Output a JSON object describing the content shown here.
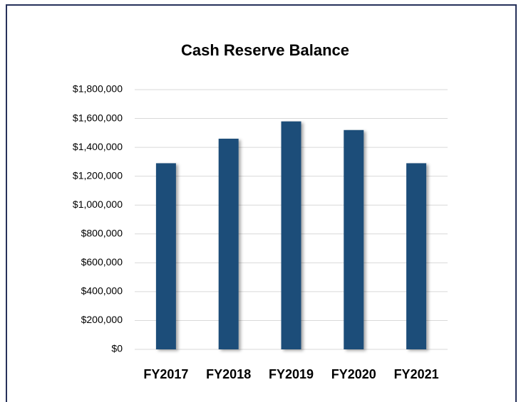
{
  "chart_data": {
    "type": "bar",
    "title": "Cash Reserve Balance",
    "categories": [
      "FY2017",
      "FY2018",
      "FY2019",
      "FY2020",
      "FY2021"
    ],
    "values": [
      1290000,
      1460000,
      1580000,
      1520000,
      1290000
    ],
    "color": "#1f4e79",
    "ylim": [
      0,
      1800000
    ],
    "yticks": [
      {
        "value": 0,
        "label": "$0"
      },
      {
        "value": 200000,
        "label": "$200,000"
      },
      {
        "value": 400000,
        "label": "$400,000"
      },
      {
        "value": 600000,
        "label": "$600,000"
      },
      {
        "value": 800000,
        "label": "$800,000"
      },
      {
        "value": 1000000,
        "label": "$1,000,000"
      },
      {
        "value": 1200000,
        "label": "$1,200,000"
      },
      {
        "value": 1400000,
        "label": "$1,400,000"
      },
      {
        "value": 1600000,
        "label": "$1,600,000"
      },
      {
        "value": 1800000,
        "label": "$1,800,000"
      }
    ],
    "grid": true
  }
}
